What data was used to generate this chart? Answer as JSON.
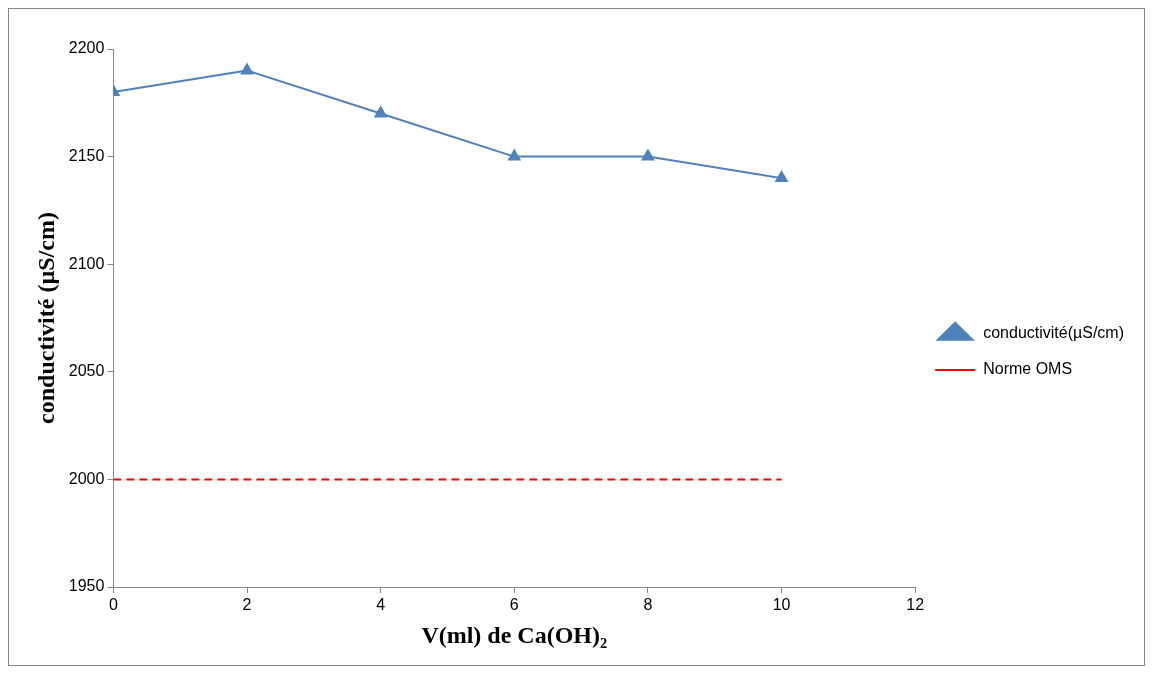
{
  "chart_data": {
    "type": "line",
    "xlabel": "V(ml) de Ca(OH)₂",
    "ylabel": "conductivité (µS/cm)",
    "xlim": [
      0,
      12
    ],
    "xticks": [
      0,
      2,
      4,
      6,
      8,
      10,
      12
    ],
    "ylim": [
      1950,
      2200
    ],
    "yticks": [
      1950,
      2000,
      2050,
      2100,
      2150,
      2200
    ],
    "grid": false,
    "legend": "right",
    "series": [
      {
        "name": "conductivité(µS/cm)",
        "color": "#4f81bd",
        "x": [
          0,
          2,
          4,
          6,
          8,
          10
        ],
        "values": [
          2180,
          2190,
          2170,
          2150,
          2150,
          2140
        ],
        "marker": "triangle",
        "line_style": "solid"
      },
      {
        "name": "Norme OMS",
        "color": "#ff0000",
        "x": [
          0,
          10
        ],
        "values": [
          2000,
          2000
        ],
        "marker": "none",
        "line_style": "dashed"
      }
    ]
  }
}
